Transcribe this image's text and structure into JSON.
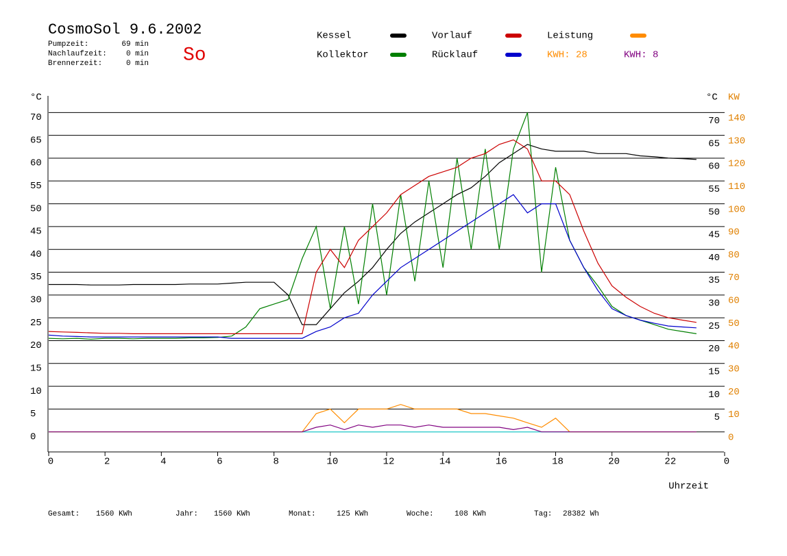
{
  "chart_data": {
    "type": "line",
    "title": "CosmoSol 9.6.2002",
    "subtitle": "So",
    "info": [
      [
        "Pumpzeit:",
        "69 min"
      ],
      [
        "Nachlaufzeit:",
        "0 min"
      ],
      [
        "Brennerzeit:",
        "0 min"
      ]
    ],
    "totals": [
      [
        "Gesamt:",
        "1560 KWh"
      ],
      [
        "Jahr:",
        "1560 KWh"
      ],
      [
        "Monat:",
        "125 KWh"
      ],
      [
        "Woche:",
        "108 KWh"
      ],
      [
        "Tag:",
        "28382 Wh"
      ]
    ],
    "energy_labels": [
      {
        "text": "KWH: 28",
        "color": "#ff8c00"
      },
      {
        "text": "KWH: 8",
        "color": "#800080"
      }
    ],
    "ylabel": "°C",
    "ylabel_right": "°C",
    "y2label": "KW",
    "xlabel": "Uhrzeit",
    "xlim": [
      0,
      24
    ],
    "xticks": [
      0,
      2,
      4,
      6,
      8,
      10,
      12,
      14,
      16,
      18,
      20,
      22,
      {
        "value": 24,
        "label": "0"
      }
    ],
    "ylim": [
      -5,
      75
    ],
    "yticks": [
      0,
      5,
      10,
      15,
      20,
      25,
      30,
      35,
      40,
      45,
      50,
      55,
      60,
      65,
      70
    ],
    "yticks_right": [
      5,
      10,
      15,
      20,
      25,
      30,
      35,
      40,
      45,
      50,
      55,
      60,
      65,
      70
    ],
    "y2lim": [
      -10,
      150
    ],
    "y2ticks": [
      0,
      10,
      20,
      30,
      40,
      50,
      60,
      70,
      80,
      90,
      100,
      110,
      120,
      130,
      140
    ],
    "grid": true,
    "x": [
      0,
      0.5,
      1,
      1.5,
      2,
      2.5,
      3,
      3.5,
      4,
      4.5,
      5,
      5.5,
      6,
      6.5,
      7,
      7.5,
      8,
      8.5,
      9,
      9.5,
      10,
      10.5,
      11,
      11.5,
      12,
      12.5,
      13,
      13.5,
      14,
      14.5,
      15,
      15.5,
      16,
      16.5,
      17,
      17.5,
      18,
      18.5,
      19,
      19.5,
      20,
      20.5,
      21,
      21.5,
      22,
      22.5,
      23
    ],
    "series": [
      {
        "name": "Kessel",
        "color": "#000000",
        "values": [
          32.3,
          32.3,
          32.3,
          32.2,
          32.2,
          32.2,
          32.3,
          32.3,
          32.3,
          32.3,
          32.4,
          32.4,
          32.4,
          32.6,
          32.8,
          32.8,
          32.8,
          30,
          23.5,
          23.5,
          27,
          30.5,
          33,
          36,
          40,
          43.5,
          46,
          48,
          50,
          52,
          53.5,
          56,
          59,
          61,
          63,
          62,
          61.5,
          61.5,
          61.5,
          61,
          61,
          61,
          60.5,
          60.3,
          60,
          59.9,
          59.7
        ]
      },
      {
        "name": "Kollektor",
        "color": "#007f00",
        "values": [
          20.5,
          20.4,
          20.5,
          20.3,
          20.5,
          20.5,
          20.4,
          20.5,
          20.5,
          20.5,
          20.6,
          20.6,
          20.7,
          21,
          23,
          27,
          28,
          29,
          38,
          45,
          27,
          45,
          28,
          50,
          30,
          52,
          33,
          55,
          36,
          60,
          40,
          62,
          40,
          62,
          70,
          35,
          58,
          42,
          36,
          32,
          27.5,
          25.5,
          24.5,
          23.5,
          22.5,
          22,
          21.5
        ]
      },
      {
        "name": "Vorlauf",
        "color": "#cc0000",
        "values": [
          22,
          21.9,
          21.8,
          21.7,
          21.6,
          21.6,
          21.5,
          21.5,
          21.5,
          21.5,
          21.5,
          21.5,
          21.5,
          21.5,
          21.5,
          21.5,
          21.5,
          21.5,
          21.5,
          35,
          40,
          36,
          42,
          45,
          48,
          52,
          54,
          56,
          57,
          58,
          60,
          61,
          63,
          64,
          62,
          55,
          55,
          52,
          44,
          37,
          32,
          29.5,
          27.5,
          26,
          25,
          24.5,
          24
        ]
      },
      {
        "name": "Rücklauf",
        "color": "#0000cc",
        "values": [
          21.2,
          21,
          20.9,
          20.8,
          20.8,
          20.8,
          20.8,
          20.8,
          20.8,
          20.8,
          20.8,
          20.8,
          20.8,
          20.5,
          20.5,
          20.5,
          20.5,
          20.5,
          20.5,
          22,
          23,
          25,
          26,
          30,
          33,
          36,
          38,
          40,
          42,
          44,
          46,
          48,
          50,
          52,
          48,
          50,
          50,
          42,
          36,
          31,
          27,
          25.5,
          24.5,
          23.8,
          23.2,
          23,
          22.8
        ]
      },
      {
        "name": "Leistung",
        "color": "#ff8c00",
        "axis": "y2",
        "values": [
          0,
          0,
          0,
          0,
          0,
          0,
          0,
          0,
          0,
          0,
          0,
          0,
          0,
          0,
          0,
          0,
          0,
          0,
          0,
          8,
          10,
          4,
          10,
          10,
          10,
          12,
          10,
          10,
          10,
          10,
          8,
          8,
          7,
          6,
          4,
          2,
          6,
          0,
          0,
          0,
          0,
          0,
          0,
          0,
          0,
          0,
          0
        ]
      },
      {
        "color": "#800080",
        "axis": "y2",
        "values": [
          0,
          0,
          0,
          0,
          0,
          0,
          0,
          0,
          0,
          0,
          0,
          0,
          0,
          0,
          0,
          0,
          0,
          0,
          0,
          2,
          3,
          1,
          3,
          2,
          3,
          3,
          2,
          3,
          2,
          2,
          2,
          2,
          2,
          1,
          2,
          0,
          0,
          0,
          0,
          0,
          0,
          0,
          0,
          0,
          0,
          0,
          0
        ]
      }
    ]
  }
}
